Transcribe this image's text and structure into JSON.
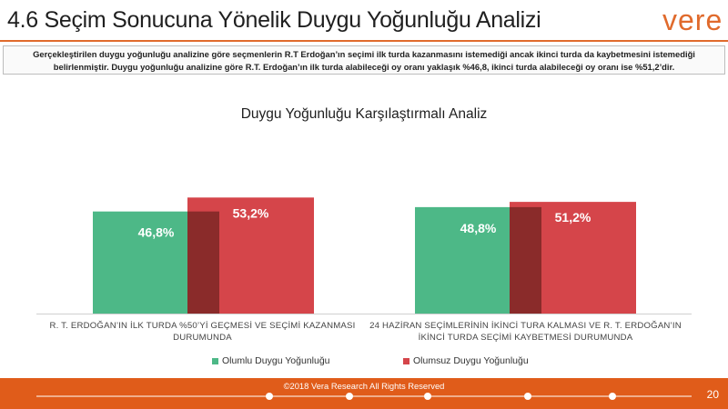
{
  "header": {
    "title": "4.6 Seçim Sonucuna Yönelik Duygu Yoğunluğu Analizi",
    "logo": "vere",
    "accent_color": "#e06a2c"
  },
  "description": {
    "line1": "Gerçekleştirilen duygu yoğunluğu  analizine göre seçmenlerin R.T Erdoğan’ın seçimi ilk turda kazanmasını istemediği ancak ikinci turda da kaybetmesini istemediği",
    "line2": "belirlenmiştir. Duygu yoğunluğu analizine göre R.T. Erdoğan’ın ilk turda alabileceği oy oranı yaklaşık %46,8, ikinci turda alabileceği oy oranı ise %51,2’dir."
  },
  "chart_data": {
    "type": "bar",
    "title": "Duygu Yoğunluğu Karşılaştırmalı Analiz",
    "categories": [
      "R. T. ERDOĞAN’IN İLK TURDA %50’Yİ GEÇMESİ VE SEÇİMİ KAZANMASI DURUMUNDA",
      "24 HAZİRAN SEÇİMLERİNİN İKİNCİ TURA KALMASI VE R. T. ERDOĞAN’IN İKİNCİ TURDA SEÇİMİ KAYBETMESİ DURUMUNDA"
    ],
    "category_lines": [
      [
        "R. T. ERDOĞAN’IN İLK TURDA %50’Yİ GEÇMESİ VE SEÇİMİ KAZANMASI",
        "DURUMUNDA"
      ],
      [
        "24 HAZİRAN SEÇİMLERİNİN İKİNCİ TURA KALMASI VE R. T. ERDOĞAN’IN",
        "İKİNCİ TURDA SEÇİMİ KAYBETMESİ DURUMUNDA"
      ]
    ],
    "series": [
      {
        "name": "Olumlu Duygu Yoğunluğu",
        "values": [
          46.8,
          48.8
        ],
        "labels": [
          "46,8%",
          "48,8%"
        ],
        "color": "#4db887"
      },
      {
        "name": "Olumsuz Duygu Yoğunluğu",
        "values": [
          53.2,
          51.2
        ],
        "labels": [
          "53,2%",
          "51,2%"
        ],
        "color": "#d5454a"
      }
    ],
    "overlap_color": "#8a2b2a",
    "ylim": [
      0,
      60
    ],
    "grid": false,
    "legend_position": "bottom"
  },
  "footer": {
    "copyright": "©2018 Vera Research All Rights Reserved",
    "page_number": "20",
    "color": "#e05c1a"
  }
}
